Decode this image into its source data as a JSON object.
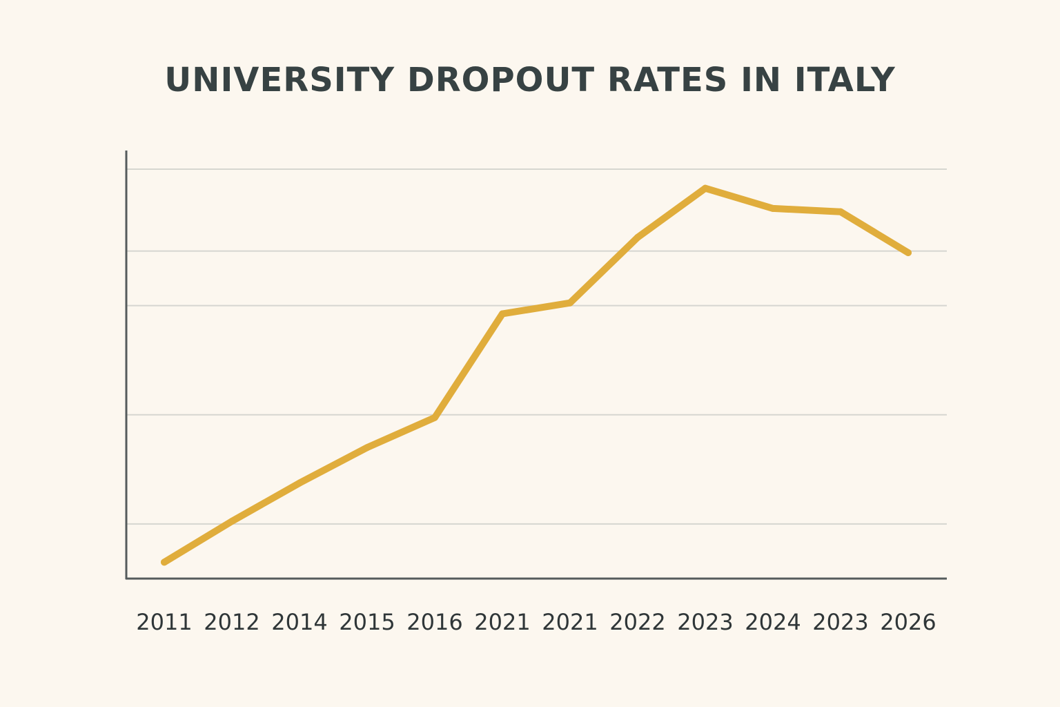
{
  "chart_data": {
    "type": "line",
    "title": "UNIVERSITY DROPOUT RATES IN ITALY",
    "xlabel": "",
    "ylabel": "",
    "categories": [
      "2011",
      "2012",
      "2014",
      "2015",
      "2016",
      "2021",
      "2021",
      "2022",
      "2023",
      "2024",
      "2023",
      "2026"
    ],
    "series": [
      {
        "values": [
          0.3,
          1.05,
          1.75,
          2.4,
          2.95,
          4.85,
          5.05,
          6.25,
          7.15,
          6.78,
          6.72,
          5.97
        ]
      }
    ],
    "ylim": [
      0,
      7.5
    ],
    "grid": true,
    "legend": "none",
    "colors": {
      "line": "#e0ad3c",
      "axis": "#555b5c",
      "grid": "#d6d6d0",
      "text": "#2f3638",
      "title": "#374243",
      "background": "#fcf7ef"
    }
  }
}
